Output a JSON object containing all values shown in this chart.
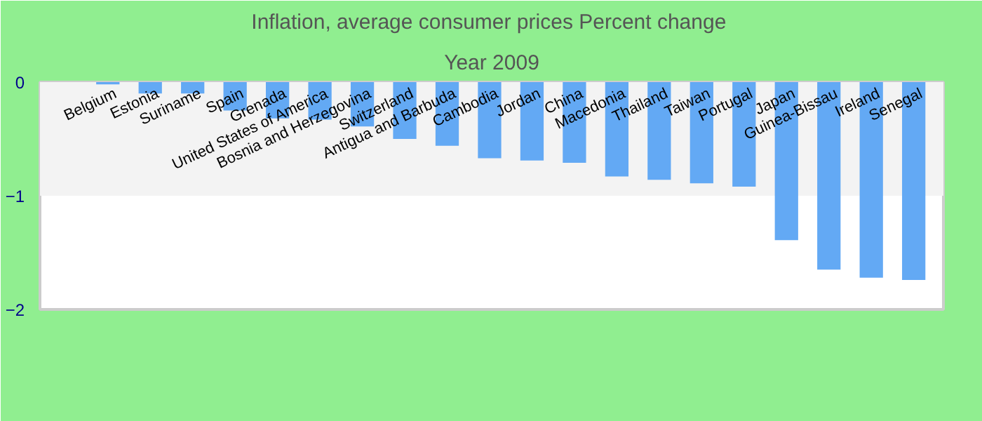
{
  "chart_data": {
    "type": "bar",
    "title": "Inflation, average consumer prices  Percent change",
    "subtitle": "Year 2009",
    "categories": [
      "Belgium",
      "Estonia",
      "Suriname",
      "Spain",
      "Grenada",
      "United States of America",
      "Bosnia and Herzegovina",
      "Switzerland",
      "Antigua and Barbuda",
      "Cambodia",
      "Jordan",
      "China",
      "Macedonia",
      "Thailand",
      "Taiwan",
      "Portugal",
      "Japan",
      "Guinea-Bissau",
      "Ireland",
      "Senegal"
    ],
    "values": [
      -0.02,
      -0.1,
      -0.1,
      -0.25,
      -0.32,
      -0.33,
      -0.39,
      -0.5,
      -0.56,
      -0.67,
      -0.69,
      -0.71,
      -0.83,
      -0.86,
      -0.89,
      -0.92,
      -1.39,
      -1.65,
      -1.72,
      -1.74
    ],
    "color": "#63a9f4",
    "ylim": [
      -2,
      0
    ],
    "yticks": [
      0,
      -1,
      -2
    ],
    "grid": false,
    "bands": [
      {
        "axis": "y",
        "from": -1,
        "to": 0,
        "color": "#f3f3f3"
      }
    ]
  }
}
